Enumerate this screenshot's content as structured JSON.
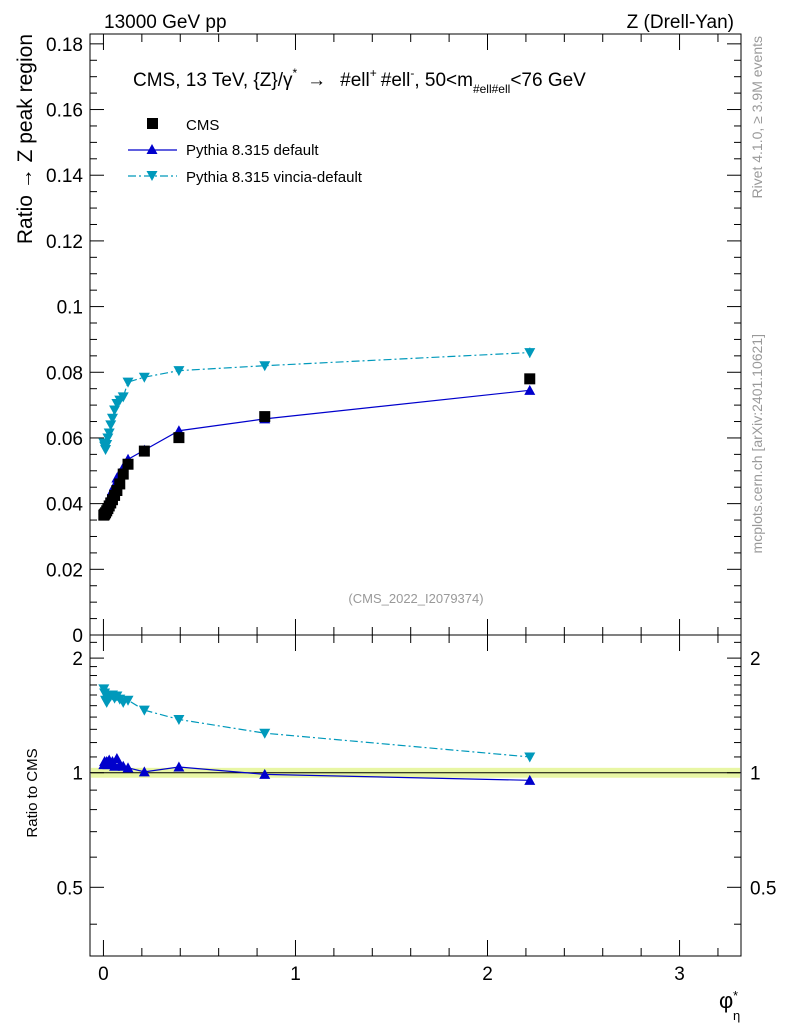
{
  "header": {
    "left": "13000 GeV pp",
    "right": "Z (Drell-Yan)"
  },
  "side_labels": {
    "rivet": "Rivet 4.1.0, ≥ 3.9M events",
    "mcplots": "mcplots.cern.ch [arXiv:2401.10621]"
  },
  "chart_data": {
    "type": "line",
    "title": "CMS, 13 TeV, {Z}/γ* → #ell⁺ #ell⁻, 50<m#ell#ell<76 GeV",
    "title_parts": {
      "main": "CMS, 13 TeV, {Z}/γ",
      "star": "*",
      "arrow": "→",
      "ell1": "#ell",
      "plus": "+",
      "ell2": "#ell",
      "minus": "-",
      "range_a": ", 50<m",
      "sub": "#ell#ell",
      "range_b": "<76 GeV"
    },
    "watermark": "(CMS_2022_I2079374)",
    "ylabel": "Ratio → Z peak region",
    "ratio_ylabel": "Ratio to CMS",
    "xlabel": "φ",
    "xlabel_sup": "*",
    "xlabel_sub": "η",
    "xlim": [
      -0.07,
      3.32
    ],
    "ylim": [
      0,
      0.183
    ],
    "ratio_ylim": [
      0.33,
      2.3
    ],
    "x_ticks": [
      "0",
      "1",
      "2",
      "3"
    ],
    "y_ticks": [
      "0",
      "0.02",
      "0.04",
      "0.06",
      "0.08",
      "0.1",
      "0.12",
      "0.14",
      "0.16",
      "0.18"
    ],
    "ratio_ticks": [
      "0.5",
      "1",
      "2"
    ],
    "x": [
      0.002,
      0.006,
      0.011,
      0.017,
      0.023,
      0.03,
      0.038,
      0.047,
      0.058,
      0.07,
      0.085,
      0.103,
      0.128,
      0.213,
      0.393,
      0.84,
      2.22
    ],
    "series": [
      {
        "name": "CMS",
        "marker": "square",
        "color": "#000000",
        "values": [
          0.0365,
          0.0368,
          0.0372,
          0.0378,
          0.0385,
          0.0393,
          0.0402,
          0.0412,
          0.0425,
          0.044,
          0.046,
          0.049,
          0.052,
          0.056,
          0.0601,
          0.0665,
          0.078
        ],
        "ratio": [
          1.0,
          1.0,
          1.0,
          1.0,
          1.0,
          1.0,
          1.0,
          1.0,
          1.0,
          1.0,
          1.0,
          1.0,
          1.0,
          1.0,
          1.0,
          1.0,
          1.0
        ]
      },
      {
        "name": "Pythia 8.315 default",
        "marker": "triangle-up",
        "color": "#0000cc",
        "line": "solid",
        "values": [
          0.038,
          0.0385,
          0.039,
          0.0398,
          0.0405,
          0.0415,
          0.0425,
          0.044,
          0.0455,
          0.0478,
          0.0492,
          0.051,
          0.0535,
          0.0563,
          0.0622,
          0.0658,
          0.0745
        ],
        "ratio": [
          1.05,
          1.07,
          1.06,
          1.07,
          1.05,
          1.08,
          1.06,
          1.07,
          1.04,
          1.09,
          1.05,
          1.04,
          1.03,
          1.005,
          1.035,
          0.99,
          0.955
        ]
      },
      {
        "name": "Pythia 8.315 vincia-default",
        "marker": "triangle-down",
        "color": "#0099bb",
        "line": "dashdot",
        "values": [
          0.0585,
          0.0575,
          0.0565,
          0.058,
          0.06,
          0.0615,
          0.064,
          0.066,
          0.0685,
          0.0705,
          0.0715,
          0.0725,
          0.077,
          0.0785,
          0.0805,
          0.082,
          0.086
        ],
        "ratio": [
          1.66,
          1.62,
          1.55,
          1.53,
          1.56,
          1.57,
          1.59,
          1.6,
          1.57,
          1.59,
          1.56,
          1.53,
          1.55,
          1.46,
          1.38,
          1.27,
          1.1
        ]
      }
    ],
    "legend": [
      "CMS",
      "Pythia 8.315 default",
      "Pythia 8.315 vincia-default"
    ],
    "legend_position": "top-left"
  }
}
